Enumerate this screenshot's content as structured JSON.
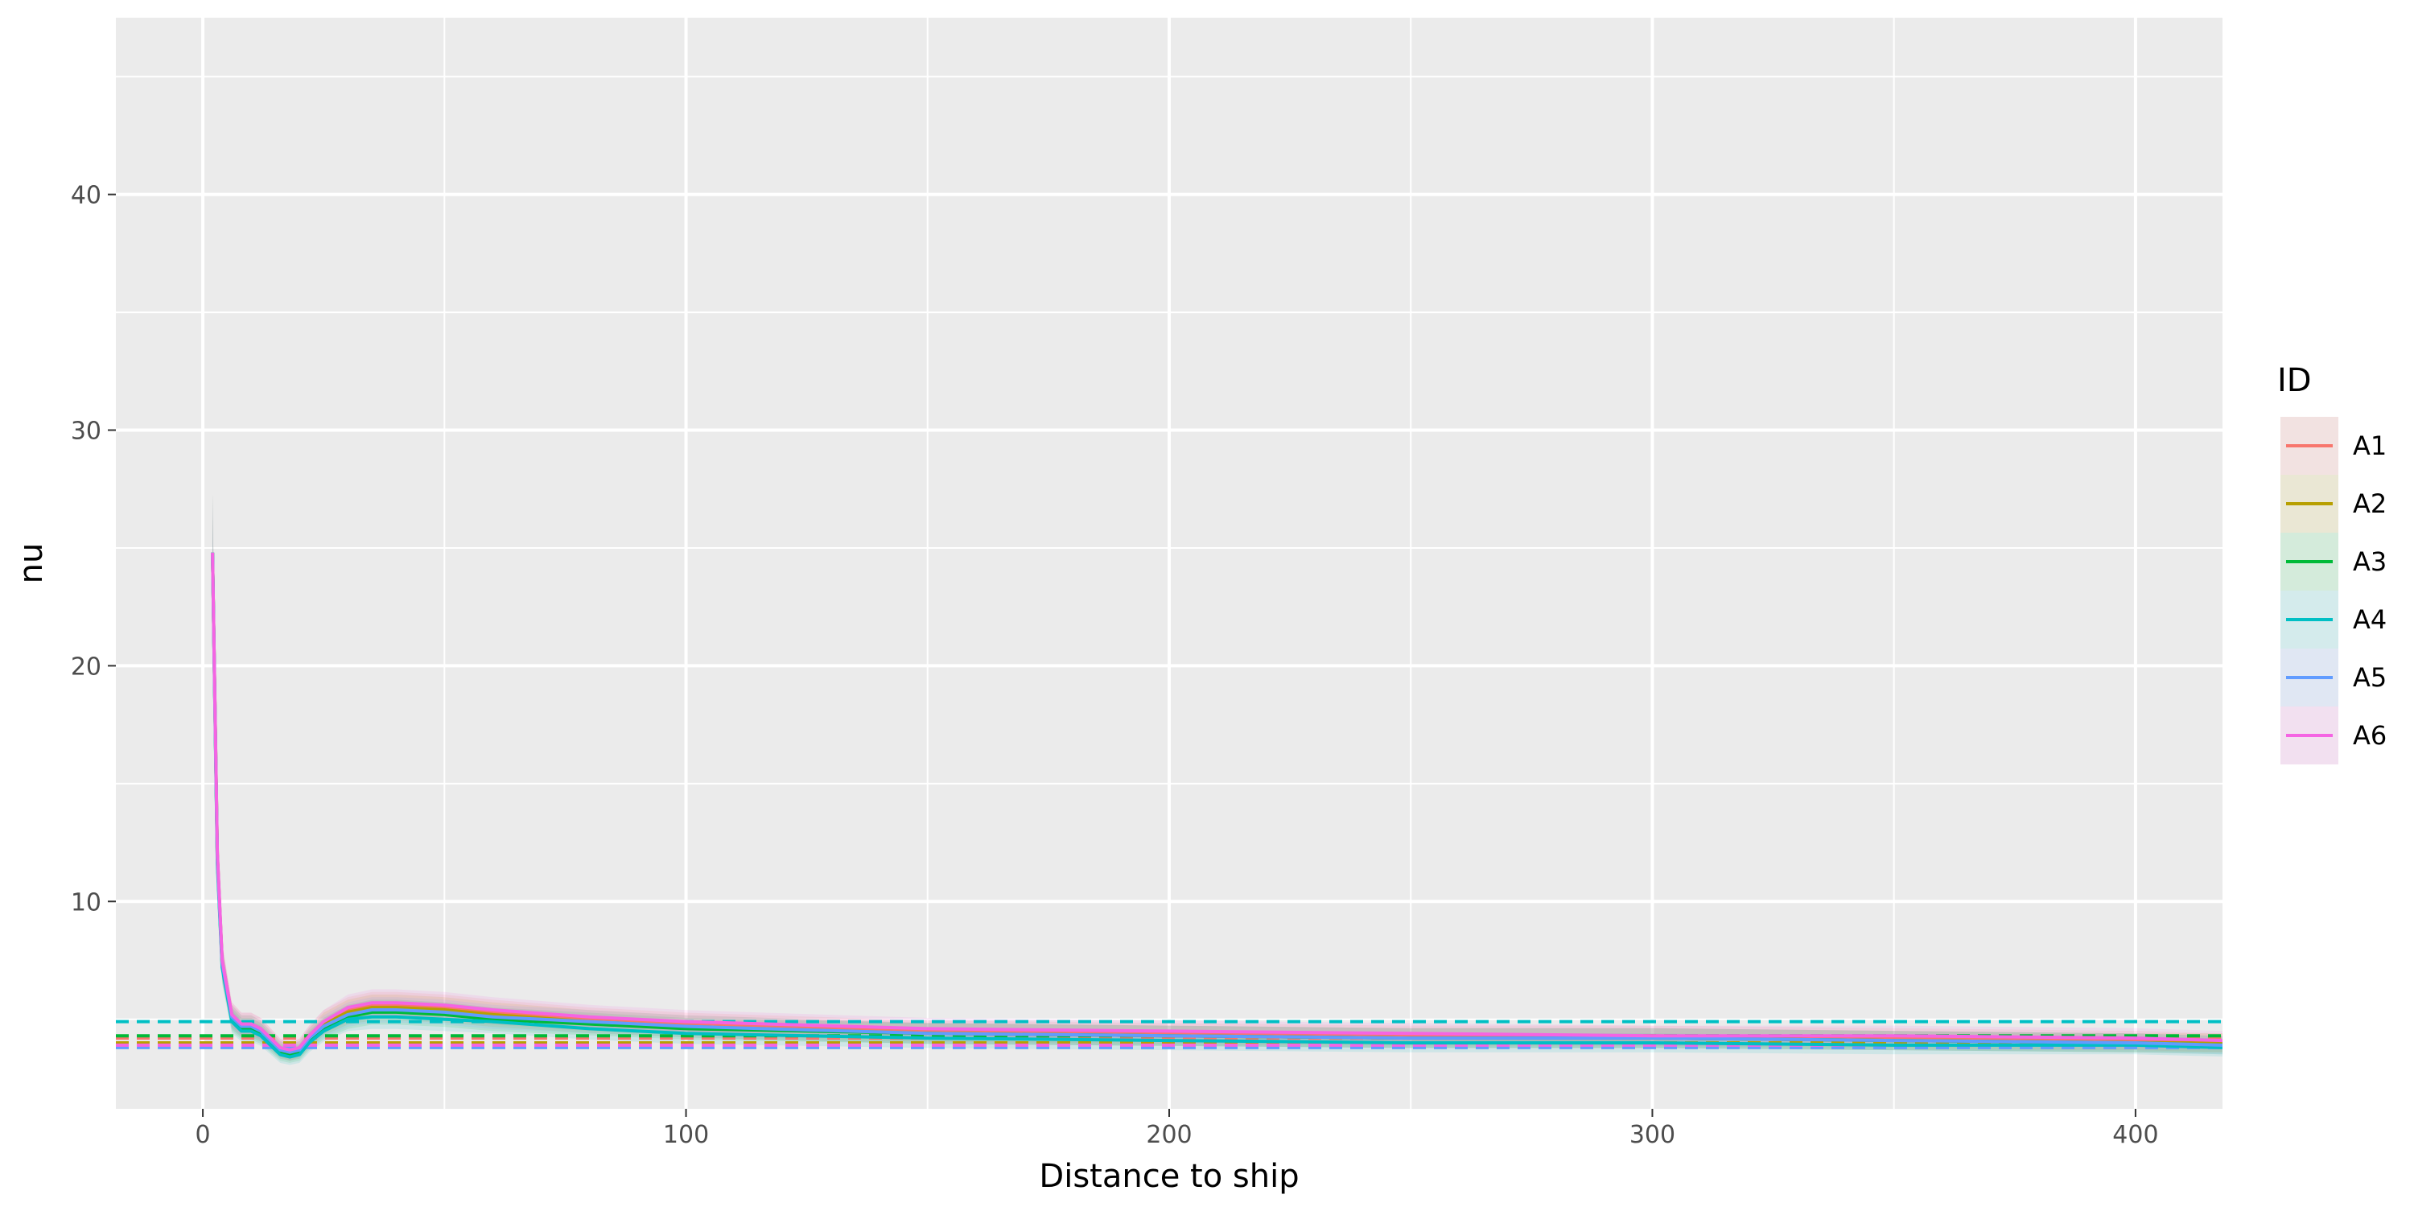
{
  "chart_data": {
    "type": "line",
    "title": "",
    "xlabel": "Distance to ship",
    "ylabel": "nu",
    "xlim": [
      -18,
      418
    ],
    "ylim": [
      1.2,
      47.5
    ],
    "x_ticks": [
      0,
      100,
      200,
      300,
      400
    ],
    "x_minor_ticks": [
      50,
      150,
      250,
      350
    ],
    "y_ticks": [
      10,
      20,
      30,
      40
    ],
    "y_minor_ticks": [
      5,
      15,
      25,
      35,
      45
    ],
    "grid": true,
    "legend": {
      "title": "ID",
      "placement": "right"
    },
    "series": [
      {
        "name": "A1",
        "color": "#F8766D",
        "hline": 4.2,
        "x": [
          2,
          3,
          4,
          6,
          8,
          10,
          12,
          14,
          16,
          18,
          20,
          22,
          25,
          30,
          35,
          40,
          50,
          60,
          80,
          100,
          150,
          200,
          250,
          300,
          350,
          400,
          418
        ],
        "y": [
          24.8,
          12.0,
          7.5,
          5.2,
          4.8,
          4.8,
          4.6,
          4.2,
          3.8,
          3.6,
          3.8,
          4.3,
          4.9,
          5.4,
          5.6,
          5.6,
          5.5,
          5.3,
          5.0,
          4.8,
          4.5,
          4.4,
          4.3,
          4.3,
          4.2,
          4.1,
          4.0
        ]
      },
      {
        "name": "A2",
        "color": "#B79F00",
        "hline": 4.0,
        "x": [
          2,
          3,
          4,
          6,
          8,
          10,
          12,
          14,
          16,
          18,
          20,
          22,
          25,
          30,
          35,
          40,
          50,
          60,
          80,
          100,
          150,
          200,
          250,
          300,
          350,
          400,
          418
        ],
        "y": [
          24.8,
          12.0,
          7.4,
          5.1,
          4.7,
          4.7,
          4.5,
          4.1,
          3.7,
          3.6,
          3.7,
          4.2,
          4.8,
          5.3,
          5.5,
          5.5,
          5.4,
          5.2,
          4.9,
          4.7,
          4.4,
          4.3,
          4.2,
          4.2,
          4.1,
          4.0,
          4.0
        ]
      },
      {
        "name": "A3",
        "color": "#00BA38",
        "hline": 4.3,
        "x": [
          2,
          3,
          4,
          6,
          8,
          10,
          12,
          14,
          16,
          18,
          20,
          22,
          25,
          30,
          35,
          40,
          50,
          60,
          80,
          100,
          150,
          200,
          250,
          300,
          350,
          400,
          418
        ],
        "y": [
          24.8,
          11.8,
          7.3,
          5.0,
          4.6,
          4.6,
          4.4,
          4.0,
          3.6,
          3.5,
          3.6,
          4.1,
          4.6,
          5.1,
          5.3,
          5.3,
          5.2,
          5.0,
          4.8,
          4.6,
          4.4,
          4.3,
          4.2,
          4.2,
          4.1,
          4.0,
          3.9
        ]
      },
      {
        "name": "A4",
        "color": "#00BFC4",
        "hline": 4.9,
        "x": [
          2,
          3,
          4,
          6,
          8,
          10,
          12,
          14,
          16,
          18,
          20,
          22,
          25,
          30,
          35,
          40,
          50,
          60,
          80,
          100,
          150,
          200,
          250,
          300,
          350,
          400,
          418
        ],
        "y": [
          24.8,
          11.6,
          7.2,
          4.9,
          4.5,
          4.5,
          4.3,
          3.9,
          3.5,
          3.4,
          3.5,
          4.0,
          4.5,
          5.0,
          5.1,
          5.1,
          5.0,
          4.9,
          4.6,
          4.4,
          4.2,
          4.1,
          4.0,
          4.0,
          3.9,
          3.9,
          3.8
        ]
      },
      {
        "name": "A5",
        "color": "#619CFF",
        "hline": 3.8,
        "x": [
          2,
          3,
          4,
          6,
          8,
          10,
          12,
          14,
          16,
          18,
          20,
          22,
          25,
          30,
          35,
          40,
          50,
          60,
          80,
          100,
          150,
          200,
          250,
          300,
          350,
          400,
          418
        ],
        "y": [
          24.8,
          11.9,
          7.4,
          5.1,
          4.7,
          4.7,
          4.5,
          4.1,
          3.7,
          3.6,
          3.7,
          4.2,
          4.7,
          5.2,
          5.4,
          5.4,
          5.3,
          5.1,
          4.9,
          4.7,
          4.4,
          4.3,
          4.2,
          4.2,
          4.1,
          4.0,
          3.9
        ]
      },
      {
        "name": "A6",
        "color": "#F564E3",
        "hline": 3.9,
        "x": [
          2,
          3,
          4,
          6,
          8,
          10,
          12,
          14,
          16,
          18,
          20,
          22,
          25,
          30,
          35,
          40,
          50,
          60,
          80,
          100,
          150,
          200,
          250,
          300,
          350,
          400,
          418
        ],
        "y": [
          24.8,
          12.1,
          7.5,
          5.2,
          4.8,
          4.8,
          4.6,
          4.2,
          3.8,
          3.7,
          3.8,
          4.3,
          4.9,
          5.5,
          5.7,
          5.7,
          5.6,
          5.4,
          5.1,
          4.9,
          4.6,
          4.5,
          4.4,
          4.3,
          4.3,
          4.2,
          4.1
        ]
      }
    ]
  }
}
